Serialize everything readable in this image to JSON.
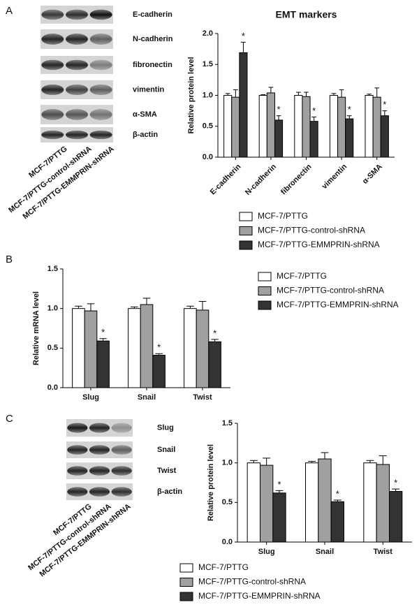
{
  "panels": [
    "A",
    "B",
    "C"
  ],
  "blots": [
    {
      "labels": [
        "E-cadherin",
        "N-cadherin",
        "fibronectin",
        "vimentin",
        "α-SMA",
        "β-actin"
      ],
      "lanes": [
        "MCF-7/PTTG",
        "MCF-7/PTTG-control-shRNA",
        "MCF-7/PTTG-EMMPRIN-shRNA"
      ]
    },
    {
      "labels": [
        "Slug",
        "Snail",
        "Twist",
        "β-actin"
      ],
      "lanes": [
        "MCF-7/PTTG",
        "MCF-7/PTTG-control-shRNA",
        "MCF-7/PTTG-EMMPRIN-shRNA"
      ]
    }
  ],
  "chart_data": [
    {
      "type": "bar",
      "title": "EMT markers",
      "ylabel": "Relative protein level",
      "categories": [
        "E-cadherin",
        "N-cadherin",
        "fibronectin",
        "vimentin",
        "α-SMA"
      ],
      "series": [
        {
          "name": "MCF-7/PTTG",
          "color": "#ffffff",
          "values": [
            1.0,
            1.0,
            1.0,
            1.0,
            1.0
          ],
          "errors": [
            0.03,
            0.01,
            0.05,
            0.03,
            0.02
          ]
        },
        {
          "name": "MCF-7/PTTG-control-shRNA",
          "color": "#a0a0a0",
          "values": [
            0.97,
            1.04,
            0.98,
            0.97,
            0.97
          ],
          "errors": [
            0.12,
            0.09,
            0.07,
            0.12,
            0.15
          ]
        },
        {
          "name": "MCF-7/PTTG-EMMPRIN-shRNA",
          "color": "#333333",
          "values": [
            1.69,
            0.6,
            0.58,
            0.62,
            0.67
          ],
          "errors": [
            0.17,
            0.07,
            0.07,
            0.05,
            0.08
          ]
        }
      ],
      "ylim": [
        0,
        2
      ],
      "yticks": [
        {
          "value": 0,
          "label": "0.0"
        },
        0.5,
        {
          "value": 1,
          "label": "1.0"
        },
        1.5,
        {
          "value": 2,
          "label": "2.0"
        }
      ],
      "significance": "*"
    },
    {
      "type": "bar",
      "ylabel": "Relative mRNA level",
      "categories": [
        "Slug",
        "Snail",
        "Twist"
      ],
      "series": [
        {
          "name": "MCF-7/PTTG",
          "color": "#ffffff",
          "values": [
            1.0,
            1.0,
            1.0
          ],
          "errors": [
            0.03,
            0.02,
            0.03
          ]
        },
        {
          "name": "MCF-7/PTTG-control-shRNA",
          "color": "#a0a0a0",
          "values": [
            0.97,
            1.05,
            0.98
          ],
          "errors": [
            0.09,
            0.08,
            0.11
          ]
        },
        {
          "name": "MCF-7/PTTG-EMMPRIN-shRNA",
          "color": "#333333",
          "values": [
            0.59,
            0.41,
            0.58
          ],
          "errors": [
            0.03,
            0.02,
            0.03
          ]
        }
      ],
      "ylim": [
        0,
        1.5
      ],
      "yticks": [
        {
          "value": 0,
          "label": "0.0"
        },
        0.5,
        {
          "value": 1,
          "label": "1.0"
        },
        1.5
      ],
      "significance": "*"
    },
    {
      "type": "bar",
      "ylabel": "Relative protein level",
      "categories": [
        "Slug",
        "Snail",
        "Twist"
      ],
      "series": [
        {
          "name": "MCF-7/PTTG",
          "color": "#ffffff",
          "values": [
            1.0,
            1.0,
            1.0
          ],
          "errors": [
            0.03,
            0.02,
            0.03
          ]
        },
        {
          "name": "MCF-7/PTTG-control-shRNA",
          "color": "#a0a0a0",
          "values": [
            0.97,
            1.05,
            0.98
          ],
          "errors": [
            0.09,
            0.08,
            0.11
          ]
        },
        {
          "name": "MCF-7/PTTG-EMMPRIN-shRNA",
          "color": "#333333",
          "values": [
            0.62,
            0.51,
            0.64
          ],
          "errors": [
            0.03,
            0.02,
            0.03
          ]
        }
      ],
      "ylim": [
        0,
        1.5
      ],
      "yticks": [
        {
          "value": 0,
          "label": "0.0"
        },
        0.5,
        {
          "value": 1,
          "label": "1.0"
        },
        1.5
      ],
      "significance": "*"
    }
  ]
}
